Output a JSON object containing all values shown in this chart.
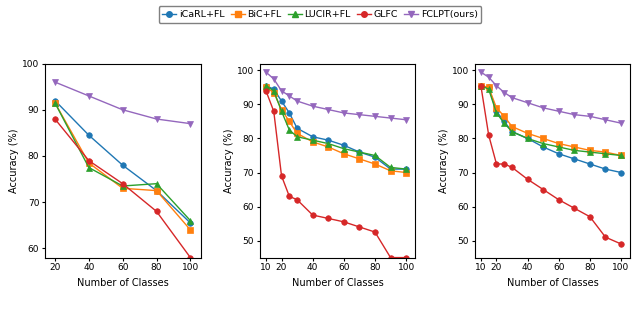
{
  "legend_labels": [
    "iCaRL+FL",
    "BiC+FL",
    "LUCIR+FL",
    "GLFC",
    "FCLPT(ours)"
  ],
  "colors": [
    "#1f77b4",
    "#ff7f0e",
    "#2ca02c",
    "#d62728",
    "#9467bd"
  ],
  "markers": [
    "o",
    "s",
    "^",
    "o",
    "v"
  ],
  "marker_sizes": [
    4,
    4,
    4,
    4,
    5
  ],
  "plot1": {
    "xlabel": "Number of Classes",
    "ylabel": "Accuracy (%)",
    "xlim": [
      14,
      106
    ],
    "ylim": [
      58,
      100
    ],
    "xticks": [
      20,
      40,
      60,
      80,
      100
    ],
    "yticks": [
      60,
      70,
      80,
      90,
      100
    ],
    "icarl": [
      92.0,
      84.5,
      78.0,
      72.5,
      65.5
    ],
    "bic": [
      91.5,
      78.5,
      73.0,
      72.5,
      64.0
    ],
    "lucir": [
      91.5,
      77.5,
      73.5,
      74.0,
      66.0
    ],
    "glfc": [
      88.0,
      79.0,
      74.0,
      68.0,
      58.0
    ],
    "fclpt": [
      96.0,
      93.0,
      90.0,
      88.0,
      87.0
    ],
    "x": [
      20,
      40,
      60,
      80,
      100
    ]
  },
  "plot2": {
    "xlabel": "Number of Classes",
    "ylabel": "Accuracy (%)",
    "xlim": [
      6,
      106
    ],
    "ylim": [
      45,
      102
    ],
    "xticks": [
      10,
      20,
      40,
      60,
      80,
      100
    ],
    "yticks": [
      50,
      60,
      70,
      80,
      90,
      100
    ],
    "icarl": [
      95.5,
      94.5,
      91.0,
      87.5,
      83.0,
      80.5,
      79.5,
      78.0,
      76.0,
      74.5,
      71.0,
      71.0
    ],
    "bic": [
      95.0,
      93.5,
      88.5,
      85.0,
      81.5,
      79.0,
      77.5,
      75.5,
      74.0,
      72.5,
      70.5,
      70.0
    ],
    "lucir": [
      95.5,
      94.0,
      88.0,
      82.5,
      80.5,
      79.5,
      78.5,
      77.0,
      76.0,
      75.0,
      71.5,
      71.0
    ],
    "glfc": [
      94.0,
      88.0,
      69.0,
      63.0,
      62.0,
      57.5,
      56.5,
      55.5,
      54.0,
      52.5,
      45.0,
      45.0
    ],
    "fclpt": [
      99.5,
      97.5,
      94.0,
      92.5,
      91.0,
      89.5,
      88.5,
      87.5,
      87.0,
      86.5,
      86.0,
      85.5
    ],
    "x": [
      10,
      15,
      20,
      25,
      30,
      40,
      50,
      60,
      70,
      80,
      90,
      100
    ]
  },
  "plot3": {
    "xlabel": "Number of Classes",
    "ylabel": "Accuracy (%)",
    "xlim": [
      6,
      106
    ],
    "ylim": [
      45,
      102
    ],
    "xticks": [
      10,
      20,
      40,
      60,
      80,
      100
    ],
    "yticks": [
      50,
      60,
      70,
      80,
      90,
      100
    ],
    "icarl": [
      95.5,
      95.0,
      88.0,
      85.0,
      82.0,
      80.0,
      77.5,
      75.5,
      74.0,
      72.5,
      71.0,
      70.0
    ],
    "bic": [
      95.5,
      95.0,
      89.0,
      86.5,
      83.5,
      81.5,
      80.0,
      78.5,
      77.5,
      76.5,
      76.0,
      75.0
    ],
    "lucir": [
      95.5,
      94.5,
      87.5,
      84.5,
      82.0,
      80.0,
      78.5,
      77.5,
      76.5,
      76.0,
      75.5,
      75.0
    ],
    "glfc": [
      95.5,
      81.0,
      72.5,
      72.5,
      71.5,
      68.0,
      65.0,
      62.0,
      59.5,
      57.0,
      51.0,
      49.0
    ],
    "fclpt": [
      99.5,
      98.0,
      95.5,
      93.5,
      92.0,
      90.5,
      89.0,
      88.0,
      87.0,
      86.5,
      85.5,
      84.5
    ],
    "x": [
      10,
      15,
      20,
      25,
      30,
      40,
      50,
      60,
      70,
      80,
      90,
      100
    ]
  },
  "bg_color": "#f5f5f0",
  "figure_bg": "#f5f5f0"
}
